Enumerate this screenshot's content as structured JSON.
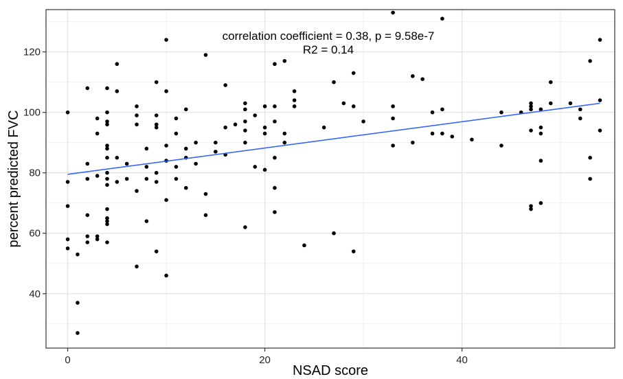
{
  "chart_data": {
    "type": "scatter",
    "title": "",
    "xlabel": "NSAD score",
    "ylabel": "percent predicted FVC",
    "xlim": [
      -2.2,
      55.5
    ],
    "ylim": [
      22,
      134
    ],
    "x_ticks": [
      0,
      20,
      40
    ],
    "x_tick_labels": [
      "0",
      "20",
      "40"
    ],
    "y_ticks": [
      40,
      60,
      80,
      100,
      120
    ],
    "y_tick_labels": [
      "40",
      "60",
      "80",
      "100",
      "120"
    ],
    "x_minor_gridlines": [
      10,
      30,
      50
    ],
    "y_minor_gridlines": [
      30,
      50,
      70,
      90,
      110,
      130
    ],
    "grid": true,
    "annotation": {
      "line1": "correlation coefficient = 0.38, p = 9.58e-7",
      "line2": "R2 = 0.14"
    },
    "point_color": "#000000",
    "trend_color": "#3366ff",
    "trend": {
      "x": [
        0,
        54
      ],
      "y": [
        79.5,
        103
      ]
    },
    "points": [
      [
        0,
        100
      ],
      [
        0,
        77
      ],
      [
        0,
        69
      ],
      [
        0,
        58
      ],
      [
        0,
        55
      ],
      [
        1,
        53
      ],
      [
        1,
        37
      ],
      [
        1,
        27
      ],
      [
        2,
        108
      ],
      [
        2,
        83
      ],
      [
        2,
        78
      ],
      [
        2,
        66
      ],
      [
        2,
        59
      ],
      [
        2,
        57
      ],
      [
        3,
        98
      ],
      [
        3,
        93
      ],
      [
        3,
        79
      ],
      [
        3,
        59
      ],
      [
        3,
        58
      ],
      [
        4,
        108
      ],
      [
        4,
        100
      ],
      [
        4,
        97
      ],
      [
        4,
        96
      ],
      [
        4,
        89
      ],
      [
        4,
        88
      ],
      [
        4,
        85
      ],
      [
        4,
        80
      ],
      [
        4,
        78
      ],
      [
        4,
        76
      ],
      [
        4,
        68
      ],
      [
        4,
        65
      ],
      [
        4,
        64
      ],
      [
        4,
        63
      ],
      [
        4,
        57
      ],
      [
        5,
        116
      ],
      [
        5,
        107
      ],
      [
        5,
        85
      ],
      [
        5,
        77
      ],
      [
        6,
        83
      ],
      [
        6,
        78
      ],
      [
        7,
        102
      ],
      [
        7,
        99
      ],
      [
        7,
        96
      ],
      [
        7,
        74
      ],
      [
        7,
        49
      ],
      [
        8,
        88
      ],
      [
        8,
        82
      ],
      [
        8,
        78
      ],
      [
        8,
        64
      ],
      [
        9,
        110
      ],
      [
        9,
        99
      ],
      [
        9,
        96
      ],
      [
        9,
        95
      ],
      [
        9,
        80
      ],
      [
        9,
        77
      ],
      [
        9,
        54
      ],
      [
        10,
        124
      ],
      [
        10,
        107
      ],
      [
        10,
        89
      ],
      [
        10,
        84
      ],
      [
        10,
        71
      ],
      [
        10,
        46
      ],
      [
        11,
        98
      ],
      [
        11,
        93
      ],
      [
        11,
        82
      ],
      [
        11,
        78
      ],
      [
        12,
        101
      ],
      [
        12,
        88
      ],
      [
        12,
        85
      ],
      [
        12,
        75
      ],
      [
        13,
        90
      ],
      [
        13,
        83
      ],
      [
        14,
        119
      ],
      [
        14,
        73
      ],
      [
        14,
        66
      ],
      [
        15,
        90
      ],
      [
        15,
        87
      ],
      [
        16,
        109
      ],
      [
        16,
        95
      ],
      [
        16,
        86
      ],
      [
        17,
        96
      ],
      [
        18,
        103
      ],
      [
        18,
        101
      ],
      [
        18,
        97
      ],
      [
        18,
        94
      ],
      [
        18,
        90
      ],
      [
        18,
        62
      ],
      [
        19,
        99
      ],
      [
        19,
        82
      ],
      [
        20,
        102
      ],
      [
        20,
        95
      ],
      [
        20,
        93
      ],
      [
        20,
        81
      ],
      [
        21,
        116
      ],
      [
        21,
        102
      ],
      [
        21,
        97
      ],
      [
        21,
        85
      ],
      [
        21,
        75
      ],
      [
        21,
        67
      ],
      [
        22,
        117
      ],
      [
        22,
        93
      ],
      [
        22,
        90
      ],
      [
        23,
        107
      ],
      [
        23,
        104
      ],
      [
        23,
        102
      ],
      [
        24,
        56
      ],
      [
        26,
        95
      ],
      [
        27,
        110
      ],
      [
        27,
        60
      ],
      [
        28,
        103
      ],
      [
        29,
        113
      ],
      [
        29,
        102
      ],
      [
        29,
        54
      ],
      [
        30,
        97
      ],
      [
        33,
        133
      ],
      [
        33,
        102
      ],
      [
        33,
        98
      ],
      [
        33,
        89
      ],
      [
        35,
        112
      ],
      [
        35,
        90
      ],
      [
        36,
        111
      ],
      [
        37,
        100
      ],
      [
        37,
        93
      ],
      [
        38,
        131
      ],
      [
        38,
        101
      ],
      [
        38,
        93
      ],
      [
        39,
        92
      ],
      [
        41,
        91
      ],
      [
        44,
        100
      ],
      [
        44,
        89
      ],
      [
        46,
        100
      ],
      [
        47,
        103
      ],
      [
        47,
        102
      ],
      [
        47,
        101
      ],
      [
        47,
        94
      ],
      [
        47,
        69
      ],
      [
        47,
        68
      ],
      [
        48,
        101
      ],
      [
        48,
        95
      ],
      [
        48,
        93
      ],
      [
        48,
        84
      ],
      [
        48,
        70
      ],
      [
        49,
        110
      ],
      [
        49,
        103
      ],
      [
        51,
        103
      ],
      [
        52,
        101
      ],
      [
        52,
        98
      ],
      [
        53,
        117
      ],
      [
        53,
        85
      ],
      [
        53,
        78
      ],
      [
        54,
        124
      ],
      [
        54,
        104
      ],
      [
        54,
        94
      ]
    ]
  }
}
